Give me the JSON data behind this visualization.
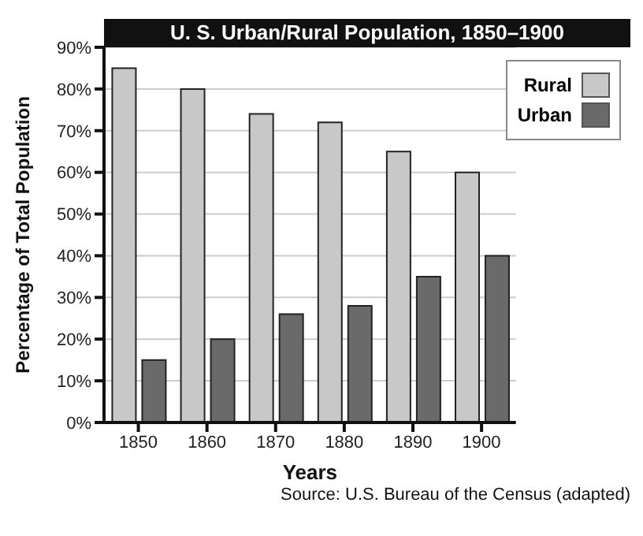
{
  "chart_data": {
    "type": "bar",
    "title": "U. S. Urban/Rural Population, 1850–1900",
    "xlabel": "Years",
    "ylabel": "Percentage of Total Population",
    "categories": [
      "1850",
      "1860",
      "1870",
      "1880",
      "1890",
      "1900"
    ],
    "series": [
      {
        "name": "Rural",
        "color": "#c8c8c8",
        "values": [
          85,
          80,
          74,
          72,
          65,
          60
        ]
      },
      {
        "name": "Urban",
        "color": "#6a6a6a",
        "values": [
          15,
          20,
          26,
          28,
          35,
          40
        ]
      }
    ],
    "ylim": [
      0,
      90
    ],
    "yticks": [
      {
        "value": 0,
        "label": "0%"
      },
      {
        "value": 10,
        "label": "10%"
      },
      {
        "value": 20,
        "label": "20%"
      },
      {
        "value": 30,
        "label": "30%"
      },
      {
        "value": 40,
        "label": "40%"
      },
      {
        "value": 50,
        "label": "50%"
      },
      {
        "value": 60,
        "label": "60%"
      },
      {
        "value": 70,
        "label": "70%"
      },
      {
        "value": 80,
        "label": "80%"
      },
      {
        "value": 90,
        "label": "90%"
      }
    ],
    "grid": "y",
    "legend": "top right",
    "annotations": [
      "Source: U.S. Bureau of the Census (adapted)"
    ]
  }
}
